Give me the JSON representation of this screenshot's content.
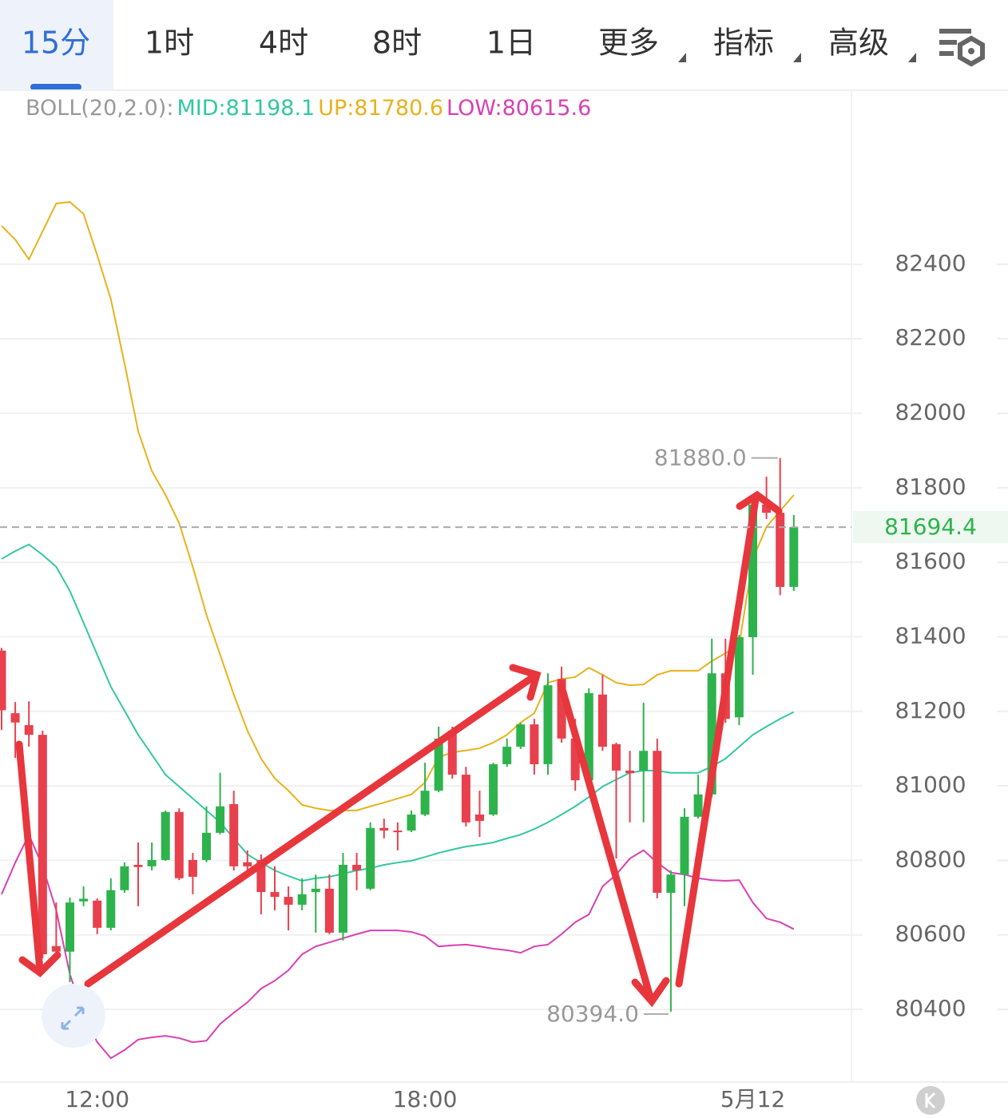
{
  "tabs": [
    "15分",
    "1时",
    "4时",
    "8时",
    "1日",
    "更多",
    "指标",
    "高级"
  ],
  "chart_data": {
    "type": "candlestick",
    "indicator_label": "BOLL(20,2.0):",
    "categories": [
      null,
      null,
      null,
      null,
      null,
      null,
      null,
      "12:00",
      null,
      null,
      null,
      null,
      null,
      null,
      null,
      null,
      null,
      null,
      null,
      null,
      null,
      null,
      null,
      null,
      null,
      null,
      null,
      null,
      null,
      null,
      null,
      "18:00",
      null,
      null,
      null,
      null,
      null,
      null,
      null,
      null,
      null,
      null,
      null,
      null,
      null,
      null,
      null,
      null,
      null,
      null,
      null,
      null,
      null,
      null,
      null,
      "5月12",
      null,
      null,
      null
    ],
    "open": [
      81363,
      81195,
      81163,
      81137,
      80570,
      80555,
      80690,
      80692,
      80619,
      80720,
      80788,
      80784,
      80801,
      80930,
      80801,
      80801,
      80874,
      80951,
      80795,
      80801,
      80715,
      80702,
      80681,
      80715,
      80724,
      80606,
      80788,
      80724,
      80887,
      80880,
      80880,
      80923,
      80987,
      81148,
      81030,
      80923,
      80923,
      81058,
      81105,
      81165,
      81058,
      81287,
      81127,
      81015,
      81245,
      81112,
      81041,
      81041,
      81094,
      80713,
      80762,
      80917,
      80977,
      81302,
      81184,
      81399,
      81755,
      81733,
      81534
    ],
    "high": [
      81370,
      81225,
      81227,
      81148,
      80687,
      80700,
      80730,
      80698,
      80752,
      80795,
      80848,
      80848,
      80934,
      80940,
      80820,
      80945,
      81035,
      80987,
      80827,
      80816,
      80784,
      80730,
      80752,
      80762,
      80762,
      80820,
      80820,
      80902,
      80912,
      80902,
      80934,
      81062,
      81159,
      81159,
      81051,
      80987,
      81062,
      81127,
      81169,
      81180,
      81302,
      81320,
      81180,
      81262,
      81298,
      81116,
      81094,
      81223,
      81127,
      80773,
      80940,
      81030,
      81395,
      81395,
      81405,
      81759,
      81830,
      81880,
      81727
    ],
    "low": [
      81150,
      81075,
      81105,
      80537,
      80537,
      80473,
      80677,
      80602,
      80612,
      80713,
      80677,
      80773,
      80799,
      80747,
      80709,
      80795,
      80870,
      80773,
      80773,
      80655,
      80666,
      80612,
      80666,
      80606,
      80602,
      80585,
      80720,
      80720,
      80859,
      80827,
      80876,
      80919,
      80983,
      81019,
      80891,
      80863,
      80919,
      81051,
      81099,
      81030,
      81030,
      81116,
      80987,
      81009,
      81094,
      80805,
      80902,
      80902,
      80698,
      80394,
      80677,
      80912,
      80970,
      81169,
      81163,
      81298,
      81716,
      81512,
      81523
    ],
    "close": [
      81203,
      81170,
      81137,
      80548,
      80555,
      80687,
      80697,
      80619,
      80720,
      80784,
      80782,
      80801,
      80930,
      80752,
      80756,
      80874,
      80945,
      80784,
      80784,
      80715,
      80702,
      80681,
      80709,
      80724,
      80606,
      80788,
      80773,
      80887,
      80880,
      80876,
      80923,
      80987,
      81127,
      81030,
      80902,
      80906,
      81058,
      81105,
      81165,
      81058,
      81270,
      81127,
      81015,
      81249,
      81105,
      81041,
      81034,
      81094,
      80713,
      80762,
      80917,
      80977,
      81302,
      81180,
      81399,
      81755,
      81733,
      81534,
      81694.4
    ],
    "up_color": "#2eb34c",
    "down_color": "#e8404d",
    "series": [
      {
        "label": "MID:81198.1",
        "color": "#33c7a2",
        "values": [
          81609,
          81630,
          81648,
          81620,
          81588,
          81523,
          81438,
          81352,
          81266,
          81202,
          81137,
          81084,
          81030,
          80998,
          80966,
          80934,
          80902,
          80859,
          80816,
          80794,
          80773,
          80758,
          80745,
          80752,
          80756,
          80764,
          80773,
          80779,
          80788,
          80794,
          80799,
          80809,
          80820,
          80829,
          80837,
          80842,
          80848,
          80859,
          80869,
          80884,
          80902,
          80923,
          80945,
          80970,
          80998,
          81017,
          81035,
          81041,
          81041,
          81035,
          81035,
          81035,
          81052,
          81073,
          81105,
          81137,
          81159,
          81180,
          81198.1
        ]
      },
      {
        "label": "UP:81780.6",
        "color": "#e8b21c",
        "values": [
          82503,
          82466,
          82413,
          82488,
          82563,
          82567,
          82535,
          82424,
          82306,
          82134,
          81952,
          81845,
          81781,
          81705,
          81588,
          81459,
          81352,
          81245,
          81148,
          81073,
          81020,
          80987,
          80949,
          80940,
          80934,
          80934,
          80934,
          80945,
          80955,
          80966,
          80977,
          81009,
          81077,
          81090,
          81095,
          81101,
          81116,
          81137,
          81170,
          81195,
          81277,
          81287,
          81292,
          81317,
          81298,
          81277,
          81270,
          81272,
          81298,
          81309,
          81309,
          81309,
          81335,
          81356,
          81378,
          81609,
          81695,
          81738,
          81780.6
        ]
      },
      {
        "label": "LOW:80615.6",
        "color": "#d940b2",
        "values": [
          80709,
          80794,
          80869,
          80784,
          80666,
          80494,
          80387,
          80312,
          80269,
          80291,
          80319,
          80325,
          80329,
          80323,
          80312,
          80316,
          80361,
          80391,
          80419,
          80456,
          80477,
          80505,
          80548,
          80569,
          80580,
          80591,
          80602,
          80612,
          80612,
          80612,
          80608,
          80597,
          80569,
          80572,
          80574,
          80569,
          80563,
          80559,
          80552,
          80569,
          80574,
          80602,
          80634,
          80655,
          80730,
          80762,
          80805,
          80827,
          80794,
          80767,
          80762,
          80752,
          80747,
          80745,
          80747,
          80687,
          80644,
          80634,
          80615.6
        ]
      }
    ],
    "ylim": [
      80205,
      82867
    ],
    "yticks": [
      80400,
      80600,
      80800,
      81000,
      81200,
      81400,
      81600,
      81800,
      82000,
      82200,
      82400
    ],
    "grid": true,
    "last_price_label": "81694.4",
    "high_label": "81880.0",
    "low_label": "80394.0"
  }
}
